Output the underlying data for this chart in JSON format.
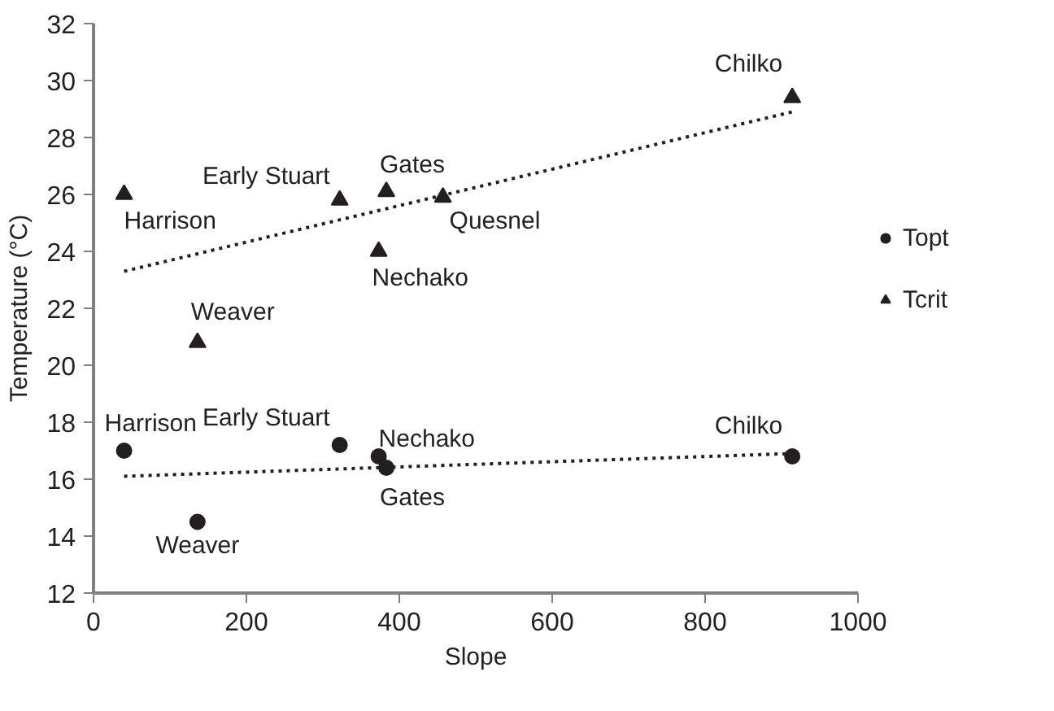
{
  "chart_data": {
    "type": "scatter",
    "xlabel": "Slope",
    "ylabel": "Temperature (°C)",
    "xlim": [
      0,
      1000
    ],
    "xticks": [
      0,
      200,
      400,
      600,
      800,
      1000
    ],
    "ylim": [
      12,
      32
    ],
    "yticks": [
      12,
      14,
      16,
      18,
      20,
      22,
      24,
      26,
      28,
      30,
      32
    ],
    "grid": false,
    "legend": "right",
    "series": [
      {
        "name": "Topt",
        "marker": "circle",
        "color": "#231f20",
        "x": [
          40,
          322,
          373,
          383,
          136,
          914
        ],
        "values": [
          17.0,
          17.2,
          16.8,
          16.4,
          14.5,
          16.8
        ]
      },
      {
        "name": "Tcrit",
        "marker": "triangle",
        "color": "#231f20",
        "x": [
          40,
          322,
          383,
          457,
          373,
          136,
          914
        ],
        "values": [
          26.0,
          25.8,
          26.1,
          25.9,
          24.0,
          20.8,
          29.4
        ]
      },
      {
        "type": "line",
        "line_style": "dotted",
        "color": "#231f20",
        "x": [
          40,
          914
        ],
        "values": [
          16.1,
          16.9
        ]
      },
      {
        "type": "line",
        "line_style": "dotted",
        "color": "#231f20",
        "x": [
          40,
          914
        ],
        "values": [
          23.3,
          28.9
        ]
      }
    ],
    "annotations": [
      {
        "text": "Harrison",
        "x": 40,
        "y": 26.0
      },
      {
        "text": "Early Stuart",
        "x": 322,
        "y": 25.8
      },
      {
        "text": "Gates",
        "x": 383,
        "y": 26.1
      },
      {
        "text": "Quesnel",
        "x": 457,
        "y": 25.9
      },
      {
        "text": "Nechako",
        "x": 373,
        "y": 24.0
      },
      {
        "text": "Weaver",
        "x": 136,
        "y": 20.8
      },
      {
        "text": "Chilko",
        "x": 914,
        "y": 29.4
      },
      {
        "text": "Harrison",
        "x": 40,
        "y": 17.0
      },
      {
        "text": "Early Stuart",
        "x": 322,
        "y": 17.2
      },
      {
        "text": "Nechako",
        "x": 373,
        "y": 16.8
      },
      {
        "text": "Gates",
        "x": 383,
        "y": 16.4
      },
      {
        "text": "Weaver",
        "x": 136,
        "y": 14.5
      },
      {
        "text": "Chilko",
        "x": 914,
        "y": 16.8
      }
    ]
  }
}
